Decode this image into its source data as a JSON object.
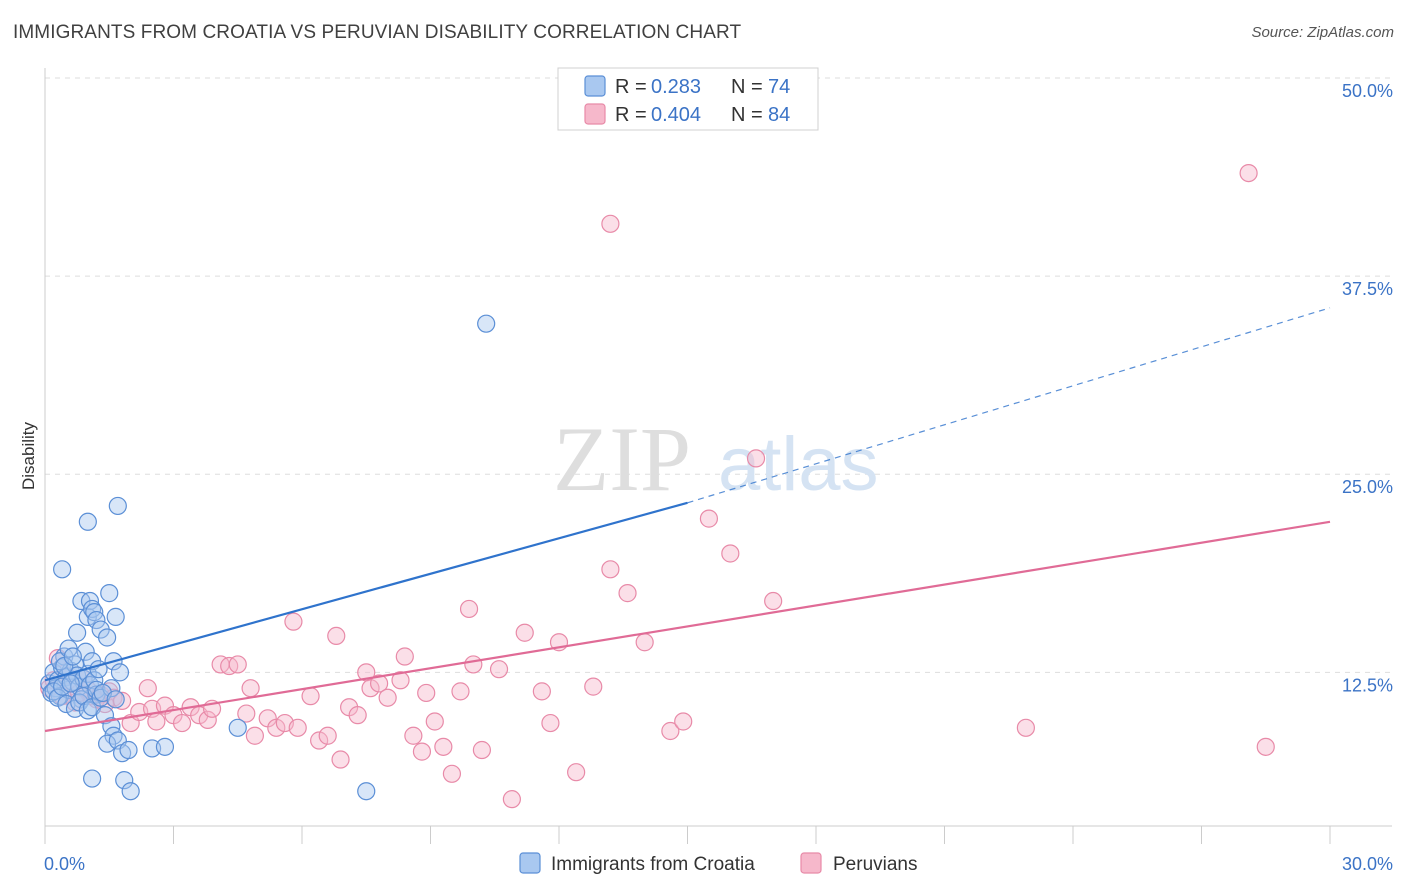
{
  "header": {
    "title": "IMMIGRANTS FROM CROATIA VS PERUVIAN DISABILITY CORRELATION CHART",
    "source": "Source: ZipAtlas.com"
  },
  "watermark": {
    "zip": "ZIP",
    "atlas": "atlas"
  },
  "colors": {
    "croatia_fill": "#a9c8f0",
    "croatia_stroke": "#5b8fd6",
    "croatia_line": "#2f73cc",
    "peru_fill": "#f6b8cb",
    "peru_stroke": "#e88aa8",
    "peru_line": "#e06b96",
    "tick": "#3b73c6",
    "grid": "#dddddd"
  },
  "legend_box": {
    "rows": [
      {
        "r_label": "R =",
        "r_value": "0.283",
        "n_label": "N =",
        "n_value": "74"
      },
      {
        "r_label": "R =",
        "r_value": "0.404",
        "n_label": "N =",
        "n_value": "84"
      }
    ]
  },
  "chart_data": {
    "type": "scatter",
    "title": "IMMIGRANTS FROM CROATIA VS PERUVIAN DISABILITY CORRELATION CHART",
    "xlabel": "",
    "ylabel": "Disability",
    "xlim": [
      0,
      30
    ],
    "ylim": [
      0,
      51
    ],
    "x_tick_labels": [
      "0.0%",
      "30.0%"
    ],
    "y_ticks": [
      12.5,
      25.0,
      37.5,
      50.0
    ],
    "y_tick_labels": [
      "12.5%",
      "25.0%",
      "37.5%",
      "50.0%"
    ],
    "grid": true,
    "legend_position": "top-center",
    "series": [
      {
        "name": "Immigrants from Croatia",
        "R": 0.283,
        "N": 74,
        "trend": {
          "x0": 0,
          "y0": 12.0,
          "x1": 15.0,
          "y1": 23.2,
          "dashed_to_x": 30,
          "dashed_to_y": 35.5
        },
        "points": [
          [
            0.1,
            11.8
          ],
          [
            0.15,
            11.2
          ],
          [
            0.2,
            12.5
          ],
          [
            0.25,
            11.5
          ],
          [
            0.3,
            12.0
          ],
          [
            0.35,
            11.0
          ],
          [
            0.4,
            12.8
          ],
          [
            0.45,
            13.5
          ],
          [
            0.5,
            12.2
          ],
          [
            0.55,
            11.4
          ],
          [
            0.6,
            12.6
          ],
          [
            0.65,
            11.9
          ],
          [
            0.7,
            13.0
          ],
          [
            0.75,
            12.3
          ],
          [
            0.8,
            11.6
          ],
          [
            0.85,
            10.8
          ],
          [
            0.9,
            12.1
          ],
          [
            0.95,
            13.8
          ],
          [
            1.0,
            12.4
          ],
          [
            1.05,
            11.7
          ],
          [
            1.1,
            13.2
          ],
          [
            1.15,
            12.0
          ],
          [
            1.2,
            11.1
          ],
          [
            1.25,
            12.7
          ],
          [
            0.2,
            11.3
          ],
          [
            0.3,
            10.9
          ],
          [
            0.4,
            11.6
          ],
          [
            0.5,
            10.5
          ],
          [
            0.6,
            11.8
          ],
          [
            0.7,
            10.2
          ],
          [
            0.8,
            10.6
          ],
          [
            0.9,
            11.0
          ],
          [
            1.0,
            10.1
          ],
          [
            1.1,
            10.3
          ],
          [
            1.2,
            11.4
          ],
          [
            1.3,
            10.9
          ],
          [
            0.35,
            13.2
          ],
          [
            0.45,
            12.9
          ],
          [
            0.55,
            14.0
          ],
          [
            0.65,
            13.5
          ],
          [
            0.75,
            15.0
          ],
          [
            0.85,
            17.0
          ],
          [
            1.0,
            16.0
          ],
          [
            1.05,
            17.0
          ],
          [
            1.1,
            16.5
          ],
          [
            1.15,
            16.3
          ],
          [
            1.2,
            15.8
          ],
          [
            1.3,
            15.2
          ],
          [
            1.5,
            17.5
          ],
          [
            1.65,
            16.0
          ],
          [
            0.4,
            19.0
          ],
          [
            1.0,
            22.0
          ],
          [
            1.7,
            23.0
          ],
          [
            1.45,
            14.7
          ],
          [
            1.6,
            13.2
          ],
          [
            1.75,
            12.5
          ],
          [
            1.55,
            11.5
          ],
          [
            1.35,
            11.2
          ],
          [
            1.65,
            10.8
          ],
          [
            1.4,
            9.8
          ],
          [
            1.55,
            9.1
          ],
          [
            1.6,
            8.5
          ],
          [
            1.45,
            8.0
          ],
          [
            1.7,
            8.2
          ],
          [
            1.8,
            7.4
          ],
          [
            1.95,
            7.6
          ],
          [
            2.5,
            7.7
          ],
          [
            2.8,
            7.8
          ],
          [
            1.1,
            5.8
          ],
          [
            1.85,
            5.7
          ],
          [
            2.0,
            5.0
          ],
          [
            4.5,
            9.0
          ],
          [
            10.3,
            34.5
          ],
          [
            7.5,
            5.0
          ]
        ]
      },
      {
        "name": "Peruvians",
        "R": 0.404,
        "N": 84,
        "trend": {
          "x0": 0,
          "y0": 8.8,
          "x1": 30,
          "y1": 22.0
        },
        "points": [
          [
            0.1,
            11.5
          ],
          [
            0.2,
            12.0
          ],
          [
            0.3,
            13.4
          ],
          [
            0.4,
            11.0
          ],
          [
            0.5,
            12.3
          ],
          [
            0.6,
            11.8
          ],
          [
            0.7,
            10.6
          ],
          [
            0.8,
            11.2
          ],
          [
            0.9,
            12.1
          ],
          [
            1.0,
            11.4
          ],
          [
            1.1,
            11.0
          ],
          [
            1.2,
            10.8
          ],
          [
            1.3,
            11.1
          ],
          [
            1.4,
            10.5
          ],
          [
            1.5,
            11.3
          ],
          [
            1.6,
            10.9
          ],
          [
            1.8,
            10.7
          ],
          [
            2.0,
            9.3
          ],
          [
            2.2,
            10.0
          ],
          [
            2.4,
            11.5
          ],
          [
            2.5,
            10.2
          ],
          [
            2.6,
            9.4
          ],
          [
            2.8,
            10.4
          ],
          [
            3.0,
            9.8
          ],
          [
            3.2,
            9.3
          ],
          [
            3.4,
            10.3
          ],
          [
            3.6,
            9.8
          ],
          [
            3.8,
            9.5
          ],
          [
            3.9,
            10.2
          ],
          [
            4.1,
            13.0
          ],
          [
            4.3,
            12.9
          ],
          [
            4.5,
            13.0
          ],
          [
            4.8,
            11.5
          ],
          [
            4.7,
            9.9
          ],
          [
            4.9,
            8.5
          ],
          [
            5.2,
            9.6
          ],
          [
            5.4,
            9.0
          ],
          [
            5.6,
            9.3
          ],
          [
            5.8,
            15.7
          ],
          [
            5.9,
            9.0
          ],
          [
            6.2,
            11.0
          ],
          [
            6.4,
            8.2
          ],
          [
            6.6,
            8.5
          ],
          [
            6.8,
            14.8
          ],
          [
            6.9,
            7.0
          ],
          [
            7.1,
            10.3
          ],
          [
            7.3,
            9.8
          ],
          [
            7.5,
            12.5
          ],
          [
            7.6,
            11.5
          ],
          [
            7.8,
            11.8
          ],
          [
            8.0,
            10.9
          ],
          [
            8.3,
            12.0
          ],
          [
            8.4,
            13.5
          ],
          [
            8.6,
            8.5
          ],
          [
            8.8,
            7.5
          ],
          [
            8.9,
            11.2
          ],
          [
            9.1,
            9.4
          ],
          [
            9.3,
            7.8
          ],
          [
            9.5,
            6.1
          ],
          [
            9.7,
            11.3
          ],
          [
            9.9,
            16.5
          ],
          [
            10.0,
            13.0
          ],
          [
            10.2,
            7.6
          ],
          [
            10.6,
            12.7
          ],
          [
            10.9,
            4.5
          ],
          [
            11.2,
            15.0
          ],
          [
            11.6,
            11.3
          ],
          [
            11.8,
            9.3
          ],
          [
            12.0,
            14.4
          ],
          [
            12.4,
            6.2
          ],
          [
            12.8,
            11.6
          ],
          [
            13.2,
            19.0
          ],
          [
            13.6,
            17.5
          ],
          [
            14.0,
            14.4
          ],
          [
            14.6,
            8.8
          ],
          [
            14.9,
            9.4
          ],
          [
            15.5,
            22.2
          ],
          [
            16.0,
            20.0
          ],
          [
            16.6,
            26.0
          ],
          [
            17.0,
            17.0
          ],
          [
            22.9,
            9.0
          ],
          [
            28.5,
            7.8
          ],
          [
            28.1,
            44.0
          ],
          [
            13.2,
            40.8
          ]
        ]
      }
    ]
  },
  "bottom_legend": {
    "items": [
      {
        "label": "Immigrants from Croatia"
      },
      {
        "label": "Peruvians"
      }
    ]
  }
}
